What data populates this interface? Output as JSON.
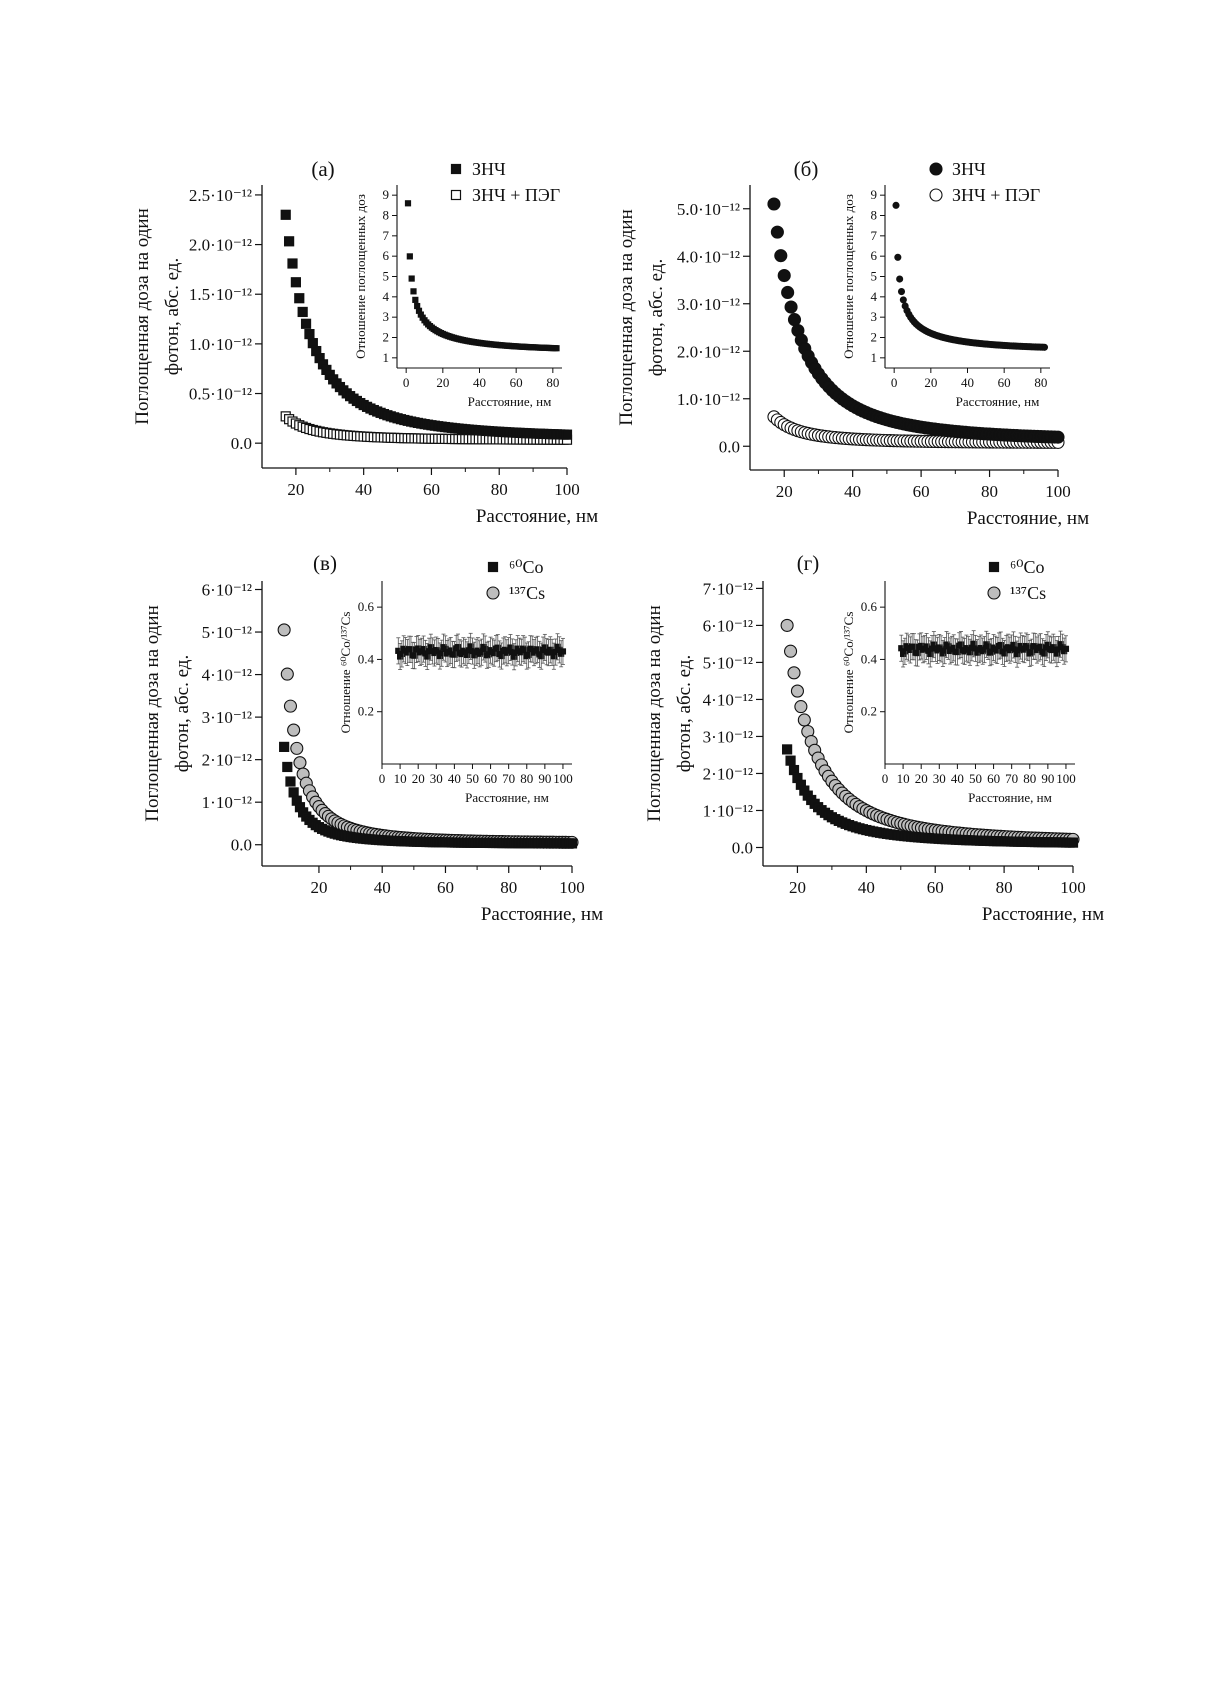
{
  "chart_data": [
    {
      "type": "scatter",
      "panel_label": "(а)",
      "xlabel": "Расстояние, нм",
      "ylabel_line1": "Поглощенная доза на один",
      "ylabel_line2": "фотон,  абс. ед.",
      "xlim": [
        10,
        100
      ],
      "ylim": [
        -2.5e-13,
        2.6e-12
      ],
      "xticks": [
        20,
        40,
        60,
        80,
        100
      ],
      "yticks": [
        0,
        5e-13,
        1e-12,
        1.5e-12,
        2e-12,
        2.5e-12
      ],
      "ytick_labels": [
        "0.0",
        "0.5·10⁻¹²",
        "1.0·10⁻¹²",
        "1.5·10⁻¹²",
        "2.0·10⁻¹²",
        "2.5·10⁻¹²"
      ],
      "legend_position": "top-right",
      "series": [
        {
          "name": "ЗНЧ",
          "marker": "square-filled",
          "color": "#111111",
          "x_range": [
            17,
            100
          ],
          "x_step": 1,
          "peak": 2.3e-12,
          "tail": 4e-14
        },
        {
          "name": "ЗНЧ + ПЭГ",
          "marker": "square-open",
          "color": "#111111",
          "x_range": [
            17,
            100
          ],
          "x_step": 1,
          "peak": 2.7e-13,
          "tail": 3e-14
        }
      ],
      "inset": {
        "type": "scatter",
        "ylabel": "Отношение поглощенных доз",
        "xlabel": "Расстояние, нм",
        "xlim": [
          -5,
          85
        ],
        "ylim": [
          0.5,
          9.5
        ],
        "xticks": [
          0,
          20,
          40,
          60,
          80
        ],
        "yticks": [
          1,
          2,
          3,
          4,
          5,
          6,
          7,
          8,
          9
        ],
        "marker": "square-filled",
        "x_range": [
          1,
          82
        ],
        "x_step": 1,
        "peak": 8.6,
        "tail": 1.35
      }
    },
    {
      "type": "scatter",
      "panel_label": "(б)",
      "xlabel": "Расстояние, нм",
      "ylabel_line1": "Поглощенная доза на один",
      "ylabel_line2": "фотон,  абс. ед.",
      "xlim": [
        10,
        100
      ],
      "ylim": [
        -5e-13,
        5.5e-12
      ],
      "xticks": [
        20,
        40,
        60,
        80,
        100
      ],
      "yticks": [
        0,
        1e-12,
        2e-12,
        3e-12,
        4e-12,
        5e-12
      ],
      "ytick_labels": [
        "0.0",
        "1.0·10⁻¹²",
        "2.0·10⁻¹²",
        "3.0·10⁻¹²",
        "4.0·10⁻¹²",
        "5.0·10⁻¹²"
      ],
      "legend_position": "top-right",
      "series": [
        {
          "name": "ЗНЧ",
          "marker": "circle-filled",
          "color": "#111111",
          "x_range": [
            17,
            100
          ],
          "x_step": 1,
          "peak": 5.1e-12,
          "tail": 9e-14
        },
        {
          "name": "ЗНЧ + ПЭГ",
          "marker": "circle-open",
          "color": "#111111",
          "x_range": [
            17,
            100
          ],
          "x_step": 1,
          "peak": 6.2e-13,
          "tail": 7e-14
        }
      ],
      "inset": {
        "type": "scatter",
        "ylabel": "Отношение поглощенных доз",
        "xlabel": "Расстояние, нм",
        "xlim": [
          -5,
          85
        ],
        "ylim": [
          0.5,
          9.5
        ],
        "xticks": [
          0,
          20,
          40,
          60,
          80
        ],
        "yticks": [
          1,
          2,
          3,
          4,
          5,
          6,
          7,
          8,
          9
        ],
        "marker": "circle-filled",
        "x_range": [
          1,
          82
        ],
        "x_step": 1,
        "peak": 8.5,
        "tail": 1.4
      }
    },
    {
      "type": "scatter",
      "panel_label": "(в)",
      "xlabel": "Расстояние, нм",
      "ylabel_line1": "Поглощенная доза на один",
      "ylabel_line2": "фотон,  абс. ед.",
      "xlim": [
        2,
        100
      ],
      "ylim": [
        -5e-13,
        6.2e-12
      ],
      "xticks": [
        20,
        40,
        60,
        80,
        100
      ],
      "yticks": [
        0,
        1e-12,
        2e-12,
        3e-12,
        4e-12,
        5e-12,
        6e-12
      ],
      "ytick_labels": [
        "0.0",
        "1·10⁻¹²",
        "2·10⁻¹²",
        "3·10⁻¹²",
        "4·10⁻¹²",
        "5·10⁻¹²",
        "6·10⁻¹²"
      ],
      "legend_position": "top-right",
      "series": [
        {
          "name": "⁶⁰Co",
          "marker": "square-filled",
          "color": "#111111",
          "x_range": [
            9,
            100
          ],
          "x_step": 1,
          "peak": 2.3e-12,
          "tail": 2e-14
        },
        {
          "name": "¹³⁷Cs",
          "marker": "circle-gray",
          "color": "#bdbdbd",
          "x_range": [
            9,
            100
          ],
          "x_step": 1,
          "peak": 5.05e-12,
          "tail": 3e-14
        }
      ],
      "inset": {
        "type": "scatter",
        "ylabel": "Отношение ⁶⁰Co/¹³⁷Cs",
        "xlabel": "Расстояние, нм",
        "xlim": [
          0,
          105
        ],
        "ylim": [
          0.0,
          0.7
        ],
        "xticks": [
          0,
          20,
          40,
          60,
          80,
          100
        ],
        "xminorticks": [
          10,
          30,
          50,
          70,
          90
        ],
        "yticks": [
          0.2,
          0.4,
          0.6
        ],
        "ytick_labels": [
          "0.2",
          "0.4",
          "0.6"
        ],
        "marker": "square-filled",
        "x_range": [
          9,
          100
        ],
        "x_step": 1,
        "mean": 0.43,
        "error": 0.05
      }
    },
    {
      "type": "scatter",
      "panel_label": "(г)",
      "xlabel": "Расстояние, нм",
      "ylabel_line1": "Поглощенная доза на один",
      "ylabel_line2": "фотон,  абс. ед.",
      "xlim": [
        10,
        100
      ],
      "ylim": [
        -5e-13,
        7.2e-12
      ],
      "xticks": [
        20,
        40,
        60,
        80,
        100
      ],
      "yticks": [
        0,
        1e-12,
        2e-12,
        3e-12,
        4e-12,
        5e-12,
        6e-12,
        7e-12
      ],
      "ytick_labels": [
        "0.0",
        "1·10⁻¹²",
        "2·10⁻¹²",
        "3·10⁻¹²",
        "4·10⁻¹²",
        "5·10⁻¹²",
        "6·10⁻¹²",
        "7·10⁻¹²"
      ],
      "legend_position": "top-right",
      "series": [
        {
          "name": "⁶⁰Co",
          "marker": "square-filled",
          "color": "#111111",
          "x_range": [
            17,
            100
          ],
          "x_step": 1,
          "peak": 2.65e-12,
          "tail": 8e-14
        },
        {
          "name": "¹³⁷Cs",
          "marker": "circle-gray",
          "color": "#bdbdbd",
          "x_range": [
            17,
            100
          ],
          "x_step": 1,
          "peak": 6e-12,
          "tail": 1e-13
        }
      ],
      "inset": {
        "type": "scatter",
        "ylabel": "Отношение ⁶⁰Co/¹³⁷Cs",
        "xlabel": "Расстояние, нм",
        "xlim": [
          0,
          105
        ],
        "ylim": [
          0.0,
          0.7
        ],
        "xticks": [
          0,
          20,
          40,
          60,
          80,
          100
        ],
        "xminorticks": [
          10,
          30,
          50,
          70,
          90
        ],
        "yticks": [
          0.2,
          0.4,
          0.6
        ],
        "ytick_labels": [
          "0.2",
          "0.4",
          "0.6"
        ],
        "marker": "square-filled",
        "x_range": [
          9,
          100
        ],
        "x_step": 1,
        "mean": 0.44,
        "error": 0.05
      }
    }
  ]
}
